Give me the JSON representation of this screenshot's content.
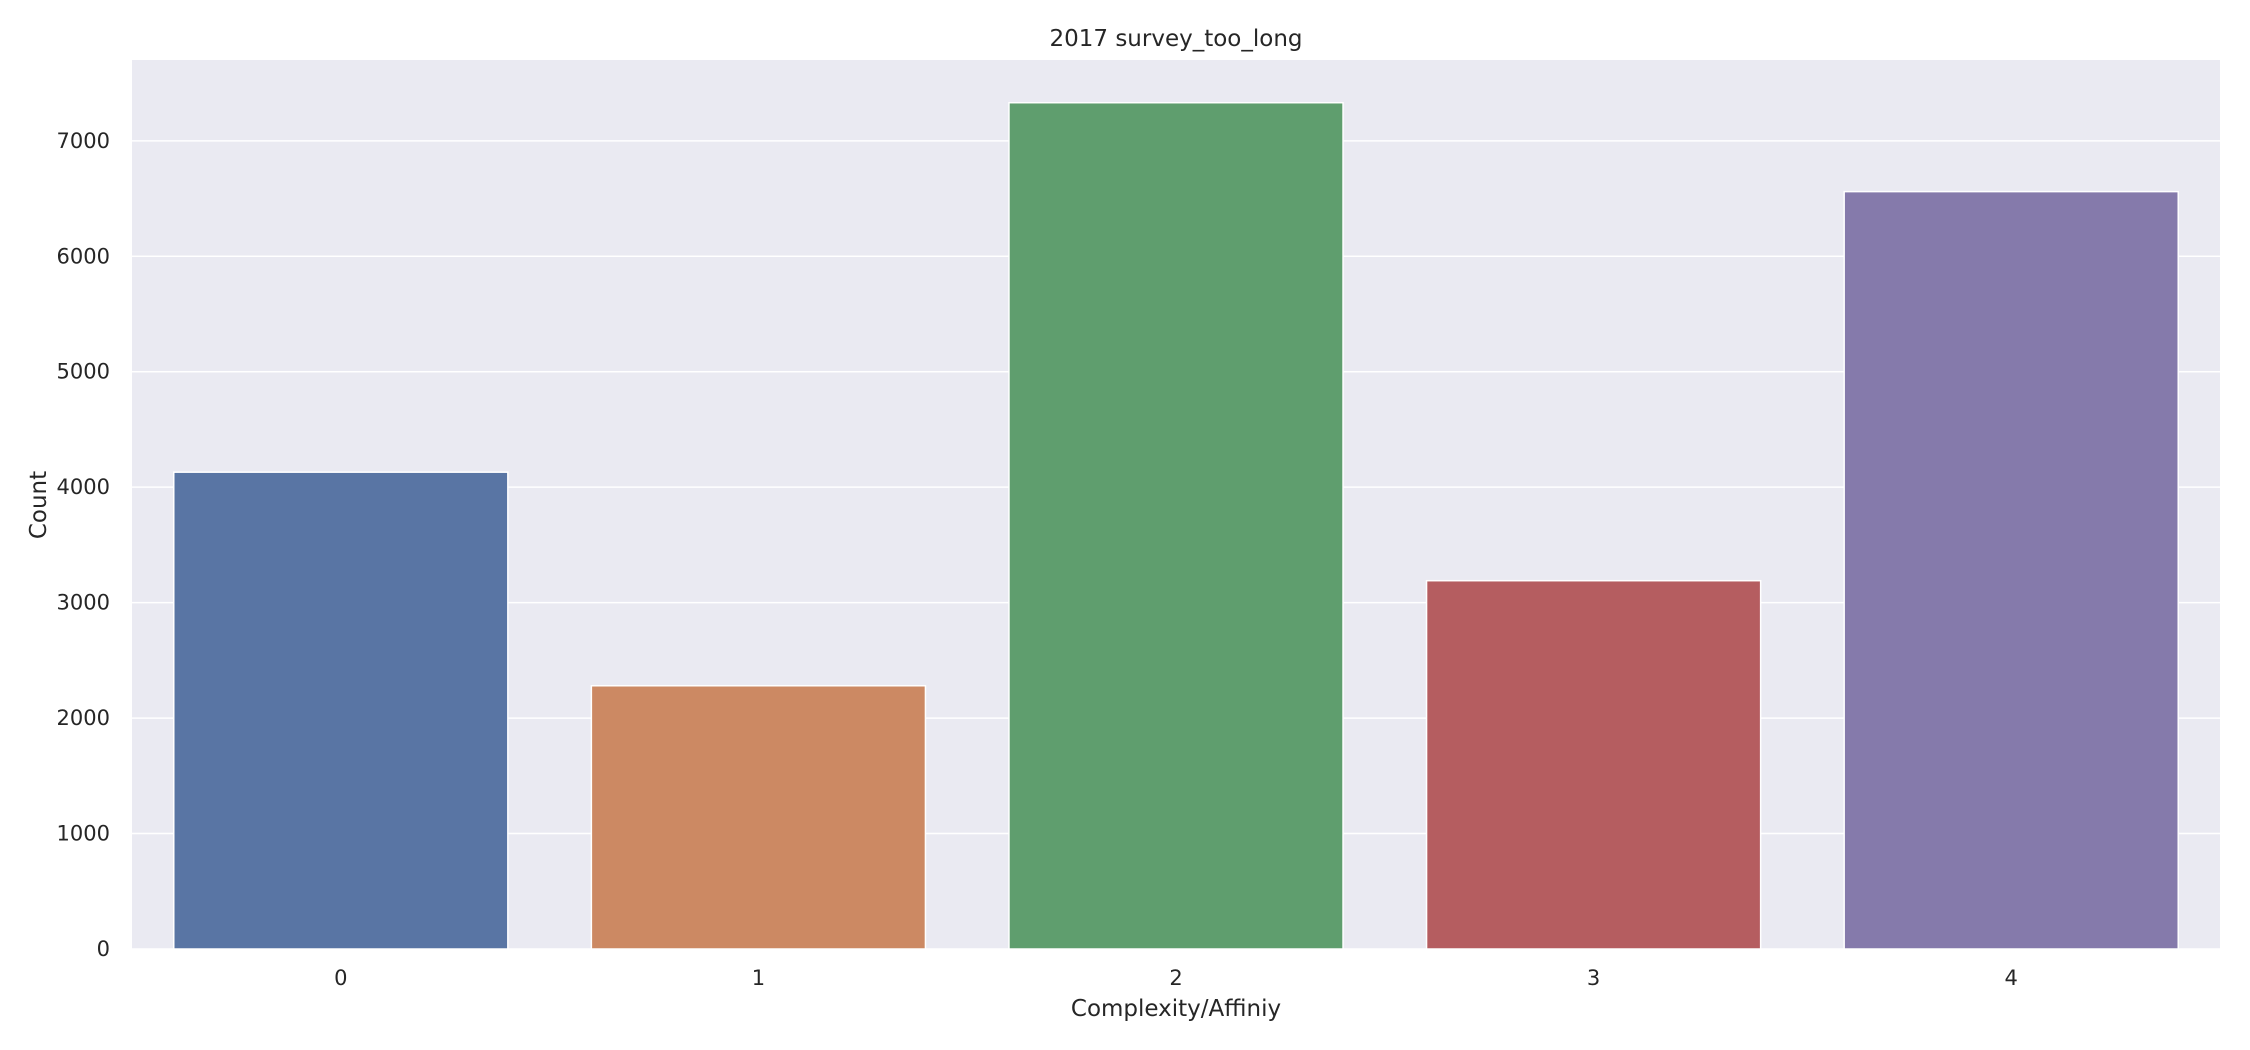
{
  "chart_data": {
    "type": "bar",
    "title": "2017 survey_too_long",
    "xlabel": "Complexity/Affiniy",
    "ylabel": "Count",
    "categories": [
      "0",
      "1",
      "2",
      "3",
      "4"
    ],
    "values": [
      4130,
      2280,
      7330,
      3190,
      6560
    ],
    "colors": [
      "#5975a4",
      "#cc8963",
      "#5f9e6e",
      "#b55d60",
      "#857aab"
    ],
    "ylim": [
      0,
      7700
    ],
    "yticks": [
      0,
      1000,
      2000,
      3000,
      4000,
      5000,
      6000,
      7000
    ],
    "grid": true,
    "legend": "none",
    "plot_background": "#eaeaf2",
    "grid_color": "#ffffff"
  }
}
